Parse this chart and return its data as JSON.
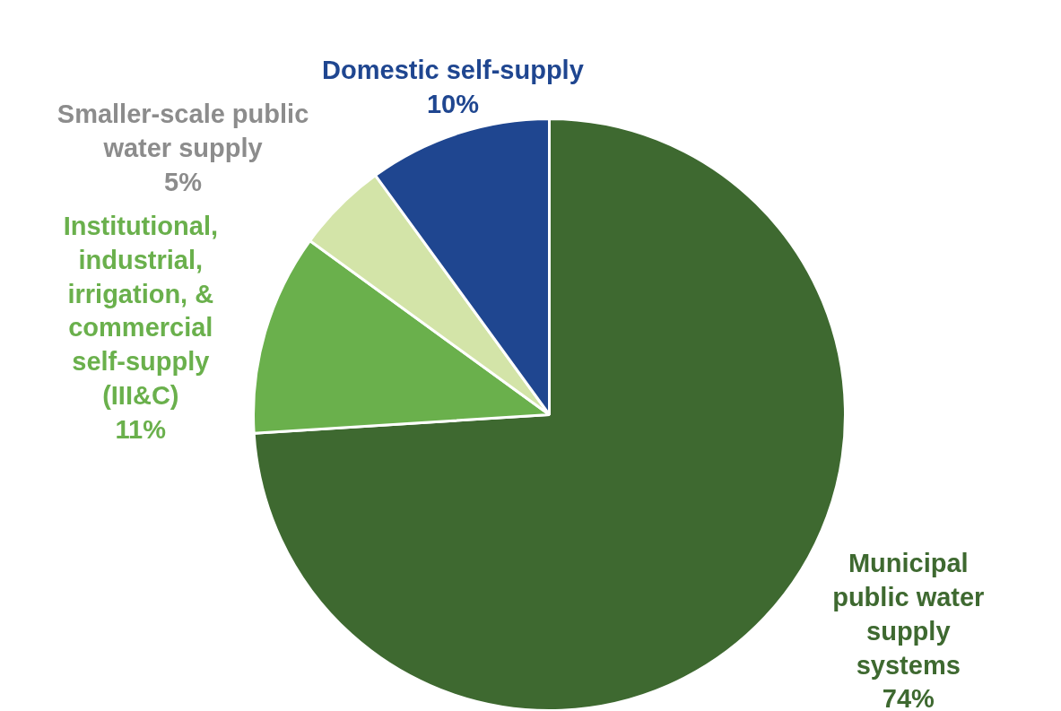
{
  "chart_data": {
    "type": "pie",
    "categories": [
      "Municipal\npublic water\nsupply\nsystems",
      "Institutional,\nindustrial,\nirrigation, &\ncommercial\nself-supply\n(III&C)",
      "Smaller-scale public\nwater supply",
      "Domestic self-supply"
    ],
    "values": [
      74,
      11,
      5,
      10
    ],
    "value_labels": [
      "74%",
      "11%",
      "5%",
      "10%"
    ],
    "colors": [
      "#3e6930",
      "#6ab04c",
      "#d3e4a8",
      "#1f4690"
    ]
  }
}
